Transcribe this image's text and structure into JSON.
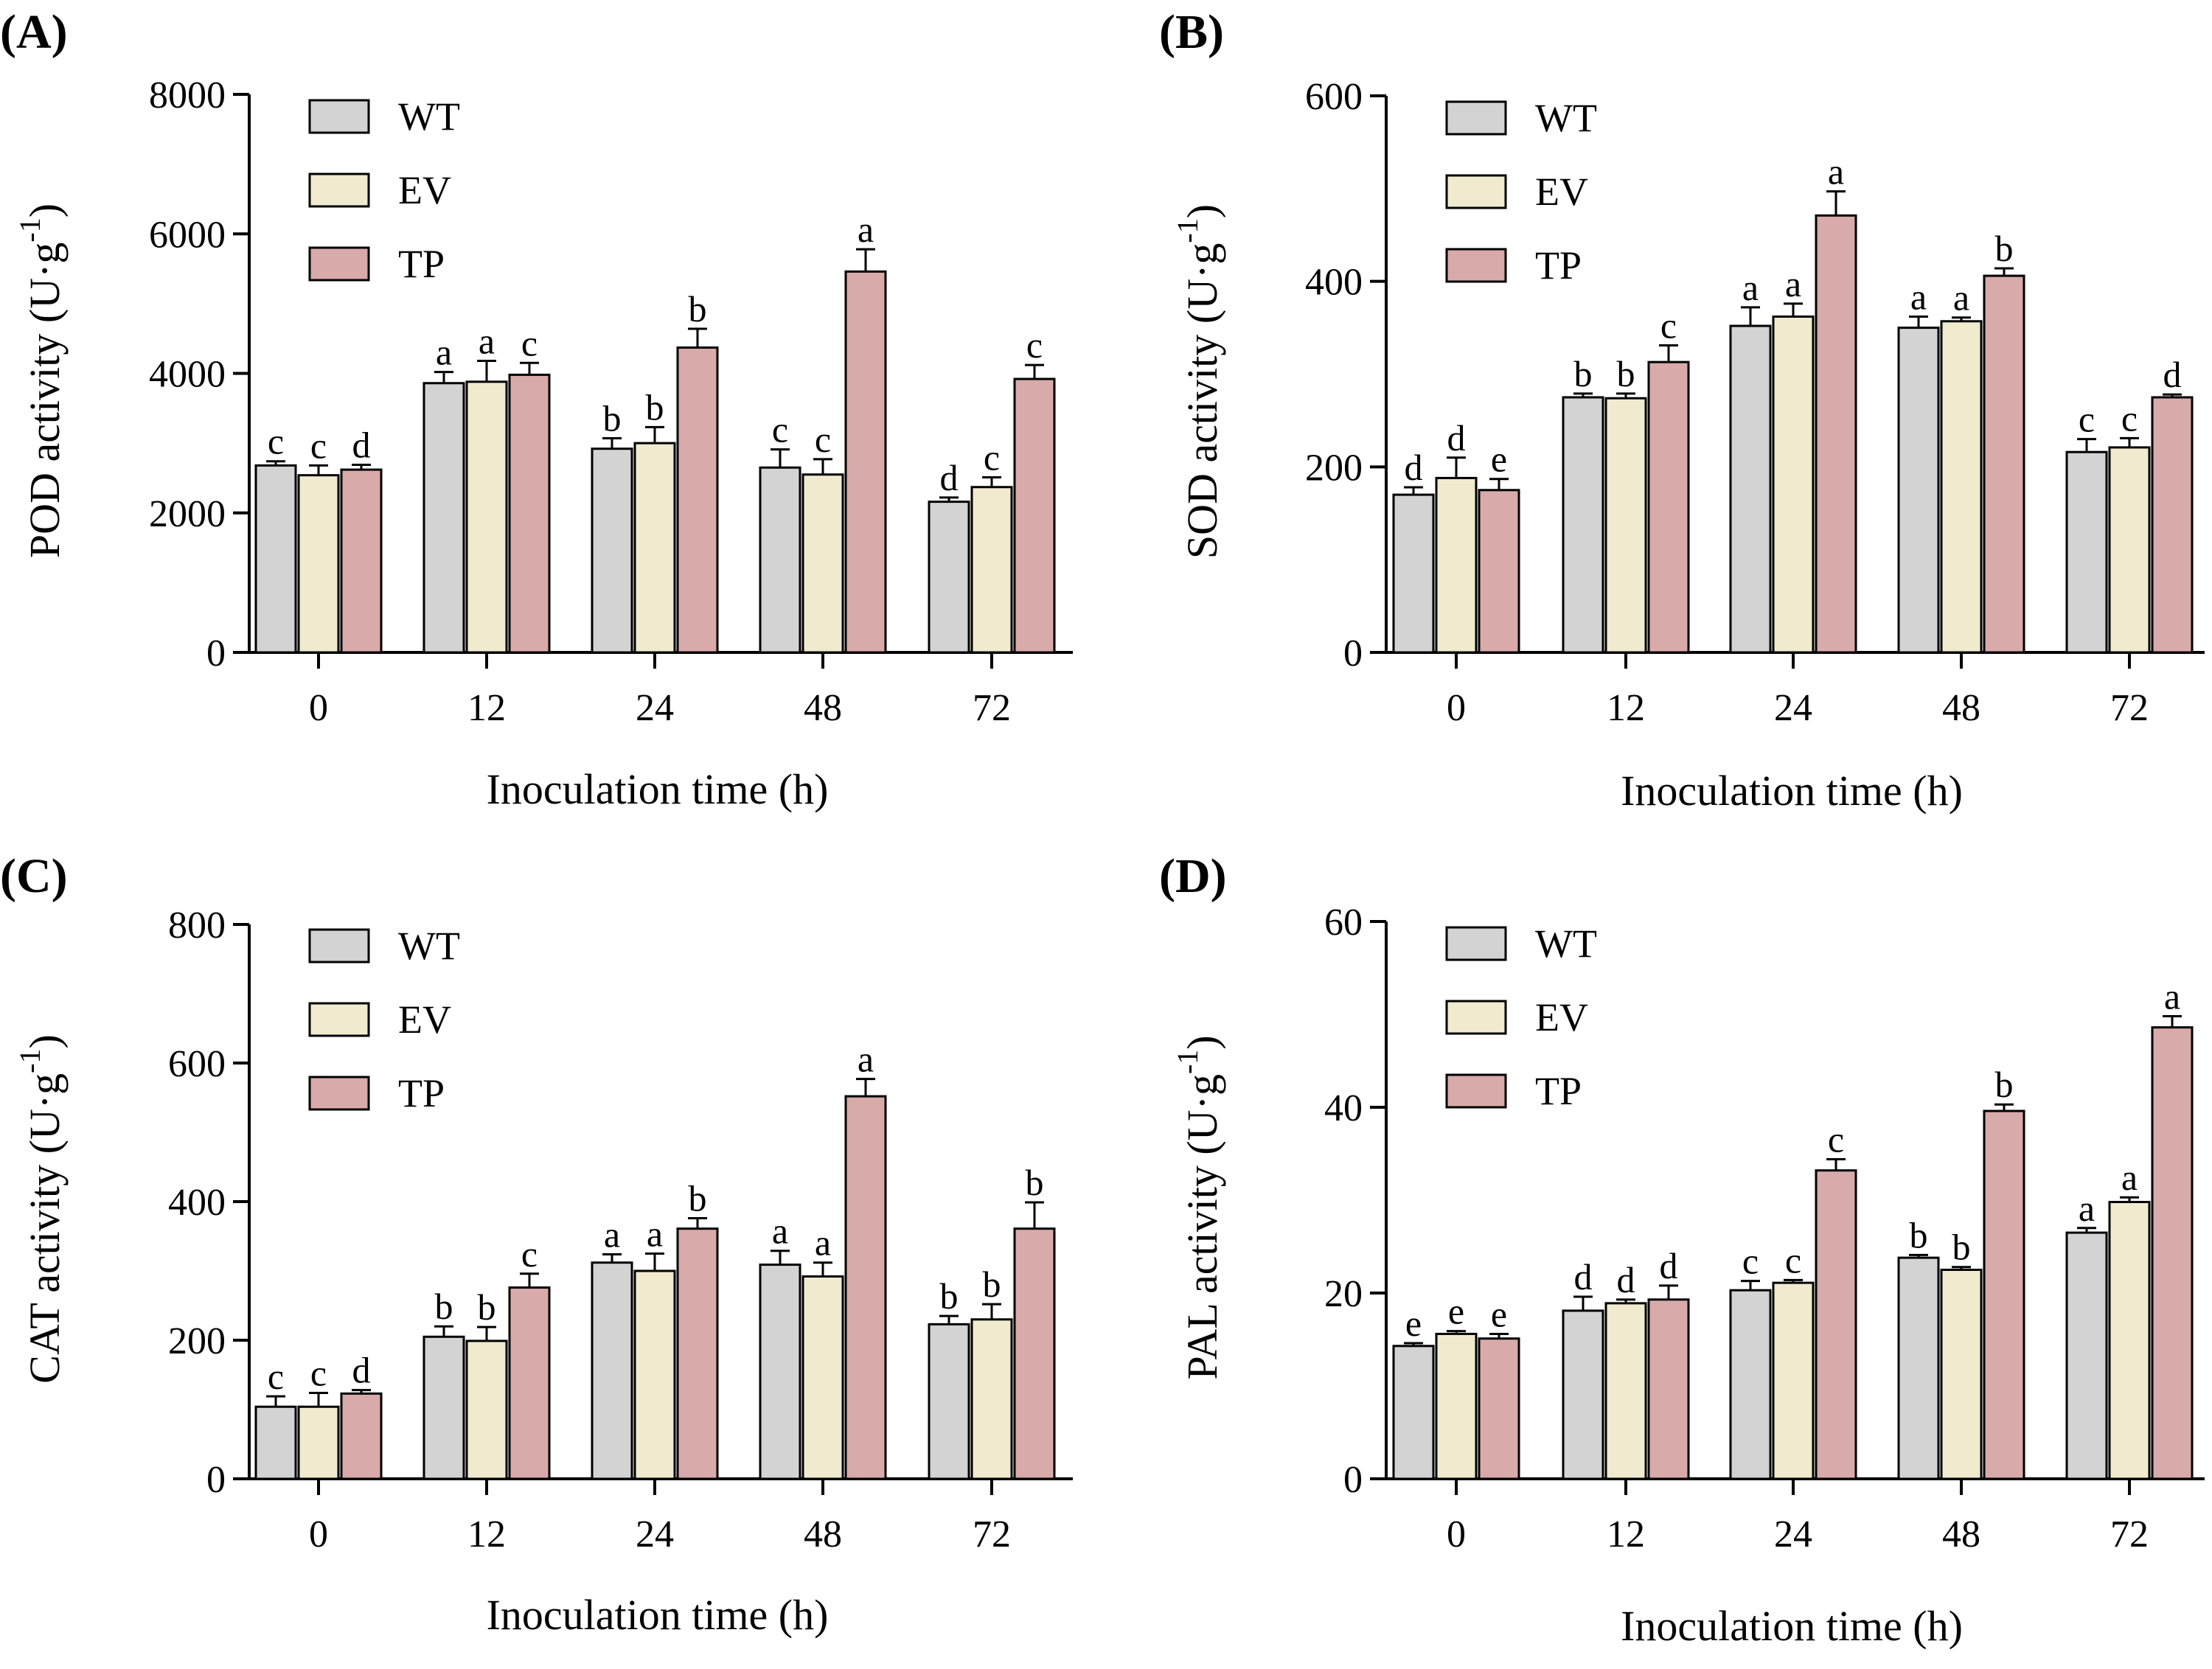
{
  "colors": {
    "WT": "#d3d3d3",
    "EV": "#f0ebcf",
    "TP": "#d8aaa9",
    "axis": "#000000"
  },
  "chart_data": [
    {
      "type": "bar",
      "panel": "(A)",
      "ylabel": "POD activity (U·g",
      "ylabel_sup": "-1",
      "ylabel_close": ")",
      "xlabel": "Inoculation time (h)",
      "ylim": [
        0,
        8000
      ],
      "yticks": [
        "0",
        "2000",
        "4000",
        "6000",
        "8000"
      ],
      "categories": [
        "0",
        "12",
        "24",
        "48",
        "72"
      ],
      "legend": [
        "WT",
        "EV",
        "TP"
      ],
      "series": [
        {
          "name": "WT",
          "values": [
            2680,
            3860,
            2920,
            2650,
            2160
          ],
          "errors": [
            60,
            160,
            150,
            260,
            60
          ],
          "letters": [
            "c",
            "a",
            "b",
            "c",
            "d"
          ]
        },
        {
          "name": "EV",
          "values": [
            2540,
            3880,
            3000,
            2550,
            2370
          ],
          "errors": [
            140,
            300,
            230,
            220,
            140
          ],
          "letters": [
            "c",
            "a",
            "b",
            "c",
            "c"
          ]
        },
        {
          "name": "TP",
          "values": [
            2620,
            3980,
            4370,
            5460,
            3920
          ],
          "errors": [
            70,
            170,
            270,
            320,
            200
          ],
          "letters": [
            "d",
            "c",
            "b",
            "a",
            "c"
          ]
        }
      ]
    },
    {
      "type": "bar",
      "panel": "(B)",
      "ylabel": "SOD activity (U·g",
      "ylabel_sup": "-1",
      "ylabel_close": ")",
      "xlabel": "Inoculation time (h)",
      "ylim": [
        0,
        600
      ],
      "yticks": [
        "0",
        "200",
        "400",
        "600"
      ],
      "categories": [
        "0",
        "12",
        "24",
        "48",
        "72"
      ],
      "legend": [
        "WT",
        "EV",
        "TP"
      ],
      "series": [
        {
          "name": "WT",
          "values": [
            170,
            275,
            352,
            350,
            216
          ],
          "errors": [
            8,
            4,
            20,
            12,
            14
          ],
          "letters": [
            "d",
            "b",
            "a",
            "a",
            "c"
          ]
        },
        {
          "name": "EV",
          "values": [
            188,
            274,
            362,
            357,
            221
          ],
          "errors": [
            22,
            5,
            14,
            4,
            10
          ],
          "letters": [
            "d",
            "b",
            "a",
            "a",
            "c"
          ]
        },
        {
          "name": "TP",
          "values": [
            175,
            313,
            471,
            406,
            275
          ],
          "errors": [
            12,
            18,
            26,
            8,
            3
          ],
          "letters": [
            "e",
            "c",
            "a",
            "b",
            "d"
          ]
        }
      ]
    },
    {
      "type": "bar",
      "panel": "(C)",
      "ylabel": "CAT activity (U·g",
      "ylabel_sup": "-1",
      "ylabel_close": ")",
      "xlabel": "Inoculation time (h)",
      "ylim": [
        0,
        800
      ],
      "yticks": [
        "0",
        "200",
        "400",
        "600",
        "800"
      ],
      "categories": [
        "0",
        "12",
        "24",
        "48",
        "72"
      ],
      "legend": [
        "WT",
        "EV",
        "TP"
      ],
      "series": [
        {
          "name": "WT",
          "values": [
            104,
            205,
            312,
            309,
            223
          ],
          "errors": [
            15,
            15,
            12,
            20,
            12
          ],
          "letters": [
            "c",
            "b",
            "a",
            "a",
            "b"
          ]
        },
        {
          "name": "EV",
          "values": [
            104,
            199,
            300,
            292,
            230
          ],
          "errors": [
            20,
            20,
            25,
            20,
            22
          ],
          "letters": [
            "c",
            "b",
            "a",
            "a",
            "b"
          ]
        },
        {
          "name": "TP",
          "values": [
            123,
            276,
            361,
            552,
            361
          ],
          "errors": [
            5,
            20,
            15,
            25,
            38
          ],
          "letters": [
            "d",
            "c",
            "b",
            "a",
            "b"
          ]
        }
      ]
    },
    {
      "type": "bar",
      "panel": "(D)",
      "ylabel": "PAL activity (U·g",
      "ylabel_sup": "-1",
      "ylabel_close": ")",
      "xlabel": "Inoculation time (h)",
      "ylim": [
        0,
        60
      ],
      "yticks": [
        "0",
        "20",
        "40",
        "60"
      ],
      "categories": [
        "0",
        "12",
        "24",
        "48",
        "72"
      ],
      "legend": [
        "WT",
        "EV",
        "TP"
      ],
      "series": [
        {
          "name": "WT",
          "values": [
            14.3,
            18.1,
            20.3,
            23.8,
            26.5
          ],
          "errors": [
            0.3,
            1.5,
            1.0,
            0.3,
            0.5
          ],
          "letters": [
            "e",
            "d",
            "c",
            "b",
            "a"
          ]
        },
        {
          "name": "EV",
          "values": [
            15.6,
            18.9,
            21.1,
            22.5,
            29.8
          ],
          "errors": [
            0.3,
            0.4,
            0.3,
            0.3,
            0.5
          ],
          "letters": [
            "e",
            "d",
            "c",
            "b",
            "a"
          ]
        },
        {
          "name": "TP",
          "values": [
            15.1,
            19.3,
            33.2,
            39.6,
            48.6
          ],
          "errors": [
            0.5,
            1.5,
            1.2,
            0.7,
            1.2
          ],
          "letters": [
            "e",
            "d",
            "c",
            "b",
            "a"
          ]
        }
      ]
    }
  ]
}
